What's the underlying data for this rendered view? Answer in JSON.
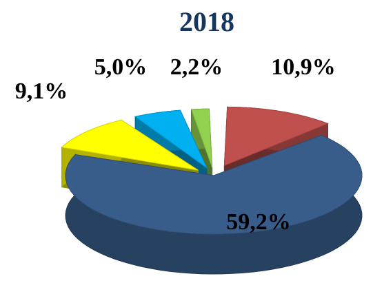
{
  "chart_data": {
    "type": "pie",
    "title": "2018",
    "categories": [
      null,
      null,
      null,
      null,
      null
    ],
    "values": [
      10.9,
      59.2,
      9.1,
      5.0,
      2.2
    ],
    "value_labels": [
      "10,9%",
      "59,2%",
      "9,1%",
      "5,0%",
      "2,2%"
    ],
    "colors": [
      "#c0504d",
      "#385d8a",
      "#ffff00",
      "#00b0f0",
      "#92d050"
    ]
  }
}
